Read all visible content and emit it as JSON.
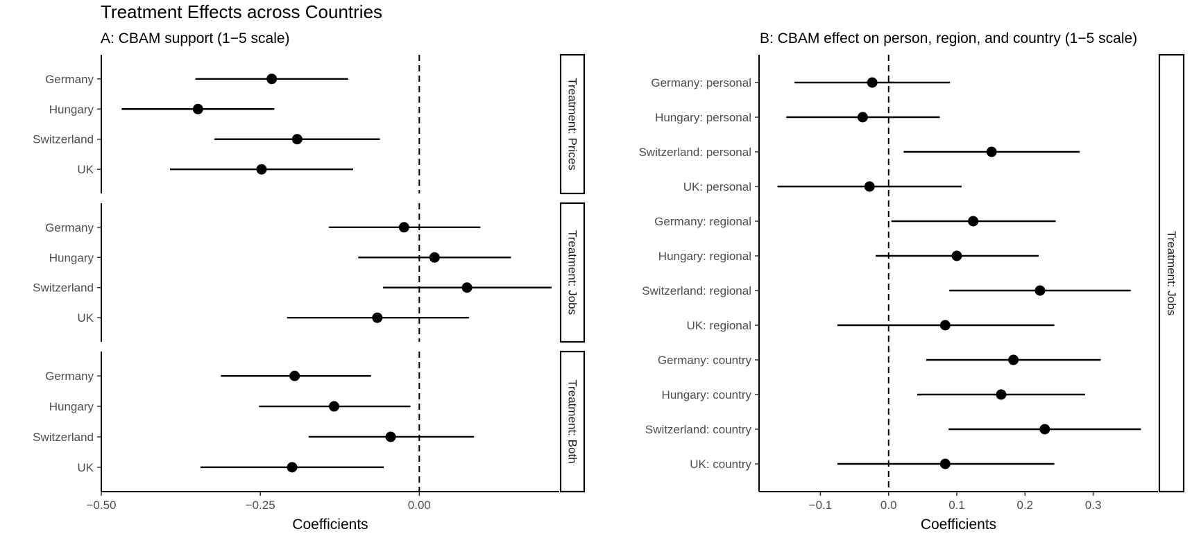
{
  "figure": {
    "title": "Treatment Effects across Countries"
  },
  "chart_data": [
    {
      "type": "scatter",
      "subtitle": "A: CBAM support (1−5 scale)",
      "xlabel": "Coefficients",
      "ylabel": "",
      "xlim": [
        -0.5,
        0.22
      ],
      "xticks": [
        "−0.50",
        "−0.25",
        "0.00"
      ],
      "xtick_values": [
        -0.5,
        -0.25,
        0.0
      ],
      "reference_line": 0,
      "facets": [
        {
          "strip": "Treatment: Prices",
          "rows": [
            {
              "label": "Germany",
              "estimate": -0.232,
              "lower": -0.352,
              "upper": -0.112
            },
            {
              "label": "Hungary",
              "estimate": -0.348,
              "lower": -0.468,
              "upper": -0.228
            },
            {
              "label": "Switzerland",
              "estimate": -0.192,
              "lower": -0.322,
              "upper": -0.062
            },
            {
              "label": "UK",
              "estimate": -0.248,
              "lower": -0.392,
              "upper": -0.104
            }
          ]
        },
        {
          "strip": "Treatment: Jobs",
          "rows": [
            {
              "label": "Germany",
              "estimate": -0.024,
              "lower": -0.142,
              "upper": 0.096
            },
            {
              "label": "Hungary",
              "estimate": 0.024,
              "lower": -0.096,
              "upper": 0.144
            },
            {
              "label": "Switzerland",
              "estimate": 0.075,
              "lower": -0.057,
              "upper": 0.208
            },
            {
              "label": "UK",
              "estimate": -0.066,
              "lower": -0.208,
              "upper": 0.078
            }
          ]
        },
        {
          "strip": "Treatment: Both",
          "rows": [
            {
              "label": "Germany",
              "estimate": -0.196,
              "lower": -0.312,
              "upper": -0.076
            },
            {
              "label": "Hungary",
              "estimate": -0.134,
              "lower": -0.252,
              "upper": -0.014
            },
            {
              "label": "Switzerland",
              "estimate": -0.045,
              "lower": -0.174,
              "upper": 0.086
            },
            {
              "label": "UK",
              "estimate": -0.2,
              "lower": -0.344,
              "upper": -0.056
            }
          ]
        }
      ]
    },
    {
      "type": "scatter",
      "subtitle": "B: CBAM effect on person, region, and country (1−5 scale)",
      "xlabel": "Coefficients",
      "ylabel": "",
      "xlim": [
        -0.19,
        0.395
      ],
      "xticks": [
        "−0.1",
        "0.0",
        "0.1",
        "0.2",
        "0.3"
      ],
      "xtick_values": [
        -0.1,
        0.0,
        0.1,
        0.2,
        0.3
      ],
      "reference_line": 0,
      "facets": [
        {
          "strip": "Treatment: Jobs",
          "rows": [
            {
              "label": "Germany: personal",
              "estimate": -0.024,
              "lower": -0.138,
              "upper": 0.09
            },
            {
              "label": "Hungary: personal",
              "estimate": -0.038,
              "lower": -0.15,
              "upper": 0.075
            },
            {
              "label": "Switzerland: personal",
              "estimate": 0.151,
              "lower": 0.022,
              "upper": 0.28
            },
            {
              "label": "UK: personal",
              "estimate": -0.028,
              "lower": -0.163,
              "upper": 0.107
            },
            {
              "label": "Germany: regional",
              "estimate": 0.124,
              "lower": 0.004,
              "upper": 0.245
            },
            {
              "label": "Hungary: regional",
              "estimate": 0.1,
              "lower": -0.019,
              "upper": 0.22
            },
            {
              "label": "Switzerland: regional",
              "estimate": 0.222,
              "lower": 0.089,
              "upper": 0.355
            },
            {
              "label": "UK: regional",
              "estimate": 0.083,
              "lower": -0.075,
              "upper": 0.243
            },
            {
              "label": "Germany: country",
              "estimate": 0.183,
              "lower": 0.055,
              "upper": 0.311
            },
            {
              "label": "Hungary: country",
              "estimate": 0.165,
              "lower": 0.042,
              "upper": 0.288
            },
            {
              "label": "Switzerland: country",
              "estimate": 0.229,
              "lower": 0.088,
              "upper": 0.37
            },
            {
              "label": "UK: country",
              "estimate": 0.083,
              "lower": -0.075,
              "upper": 0.243
            }
          ]
        }
      ]
    }
  ]
}
